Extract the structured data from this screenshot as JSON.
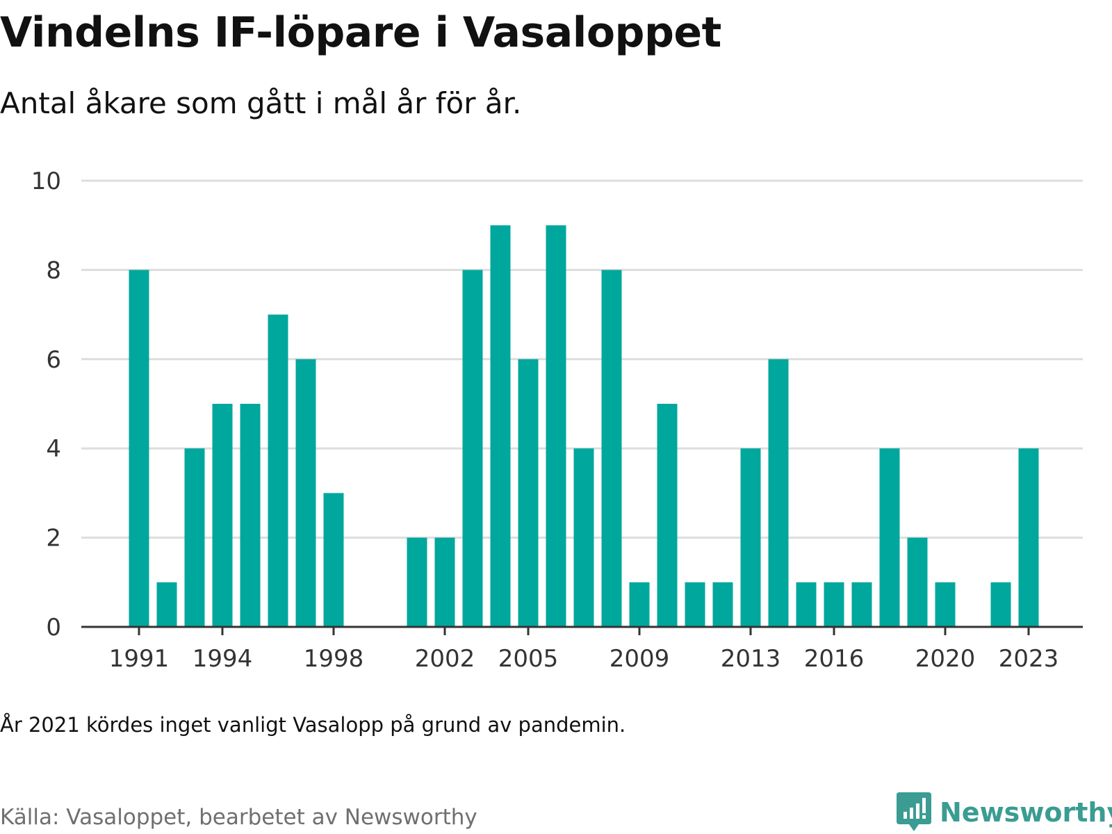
{
  "title": "Vindelns IF-löpare i Vasaloppet",
  "subtitle": "Antal åkare som gått i mål år för år.",
  "note": "År 2021 kördes inget vanligt Vasalopp på grund av pandemin.",
  "source": "Källa: Vasaloppet, bearbetet av Newsworthy",
  "brand": "Newsworthy",
  "colors": {
    "bar": "#00a79d",
    "brand": "#3a9c92",
    "grid": "#dddddd",
    "axis": "#333333",
    "tick_text": "#333333"
  },
  "chart_data": {
    "type": "bar",
    "x": [
      1991,
      1992,
      1993,
      1994,
      1995,
      1996,
      1997,
      1998,
      1999,
      2000,
      2001,
      2002,
      2003,
      2004,
      2005,
      2006,
      2007,
      2008,
      2009,
      2010,
      2011,
      2012,
      2013,
      2014,
      2015,
      2016,
      2017,
      2018,
      2019,
      2020,
      2021,
      2022,
      2023
    ],
    "values": [
      8,
      1,
      4,
      5,
      5,
      7,
      6,
      3,
      0,
      0,
      2,
      2,
      8,
      9,
      6,
      9,
      4,
      8,
      1,
      5,
      1,
      1,
      4,
      6,
      1,
      1,
      1,
      4,
      2,
      1,
      0,
      1,
      4
    ],
    "x_tick_labels": [
      "1991",
      "1994",
      "1998",
      "2002",
      "2005",
      "2009",
      "2013",
      "2016",
      "2020",
      "2023"
    ],
    "y_ticks": [
      0,
      2,
      4,
      6,
      8,
      10
    ],
    "ylim": [
      0,
      10
    ],
    "grid": true,
    "legend": false
  }
}
